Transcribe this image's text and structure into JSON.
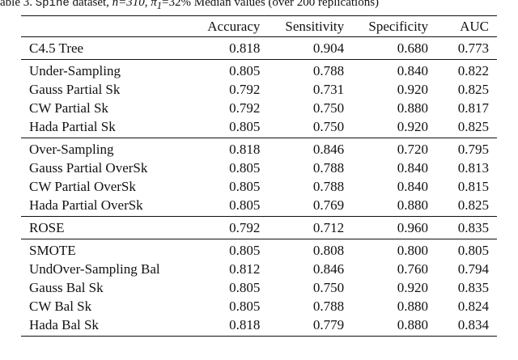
{
  "caption": {
    "label": "able 3.",
    "dataset": "Spine",
    "text_after_dataset": " dataset, ",
    "n_expr": "n=310, π",
    "sub": "1",
    "pct": "=32%",
    "rest": "  Median values (over 200 replications)"
  },
  "table": {
    "headers": [
      "",
      "Accuracy",
      "Sensitivity",
      "Specificity",
      "AUC"
    ],
    "groups": [
      [
        {
          "method": "C4.5 Tree",
          "accuracy": "0.818",
          "sensitivity": "0.904",
          "specificity": "0.680",
          "auc": "0.773",
          "auc_bold": false
        }
      ],
      [
        {
          "method": "Under-Sampling",
          "accuracy": "0.805",
          "sensitivity": "0.788",
          "specificity": "0.840",
          "auc": "0.822",
          "auc_bold": false
        },
        {
          "method": "Gauss Partial Sk",
          "accuracy": "0.792",
          "sensitivity": "0.731",
          "specificity": "0.920",
          "auc": "0.825",
          "auc_bold": true
        },
        {
          "method": "CW Partial Sk",
          "accuracy": "0.792",
          "sensitivity": "0.750",
          "specificity": "0.880",
          "auc": "0.817",
          "auc_bold": false
        },
        {
          "method": "Hada Partial Sk",
          "accuracy": "0.805",
          "sensitivity": "0.750",
          "specificity": "0.920",
          "auc": "0.825",
          "auc_bold": true
        }
      ],
      [
        {
          "method": "Over-Sampling",
          "accuracy": "0.818",
          "sensitivity": "0.846",
          "specificity": "0.720",
          "auc": "0.795",
          "auc_bold": false
        },
        {
          "method": "Gauss Partial OverSk",
          "accuracy": "0.805",
          "sensitivity": "0.788",
          "specificity": "0.840",
          "auc": "0.813",
          "auc_bold": false
        },
        {
          "method": "CW Partial OverSk",
          "accuracy": "0.805",
          "sensitivity": "0.788",
          "specificity": "0.840",
          "auc": "0.815",
          "auc_bold": false
        },
        {
          "method": "Hada Partial OverSk",
          "accuracy": "0.805",
          "sensitivity": "0.769",
          "specificity": "0.880",
          "auc": "0.825",
          "auc_bold": true
        }
      ],
      [
        {
          "method": "ROSE",
          "accuracy": "0.792",
          "sensitivity": "0.712",
          "specificity": "0.960",
          "auc": "0.835",
          "auc_bold": true
        }
      ],
      [
        {
          "method": "SMOTE",
          "accuracy": "0.805",
          "sensitivity": "0.808",
          "specificity": "0.800",
          "auc": "0.805",
          "auc_bold": false
        },
        {
          "method": "UndOver-Sampling Bal",
          "accuracy": "0.812",
          "sensitivity": "0.846",
          "specificity": "0.760",
          "auc": "0.794",
          "auc_bold": false
        },
        {
          "method": "Gauss Bal Sk",
          "accuracy": "0.805",
          "sensitivity": "0.750",
          "specificity": "0.920",
          "auc": "0.835",
          "auc_bold": true
        },
        {
          "method": "CW Bal Sk",
          "accuracy": "0.805",
          "sensitivity": "0.788",
          "specificity": "0.880",
          "auc": "0.824",
          "auc_bold": false
        },
        {
          "method": "Hada Bal Sk",
          "accuracy": "0.818",
          "sensitivity": "0.779",
          "specificity": "0.880",
          "auc": "0.834",
          "auc_bold": false
        }
      ]
    ]
  }
}
